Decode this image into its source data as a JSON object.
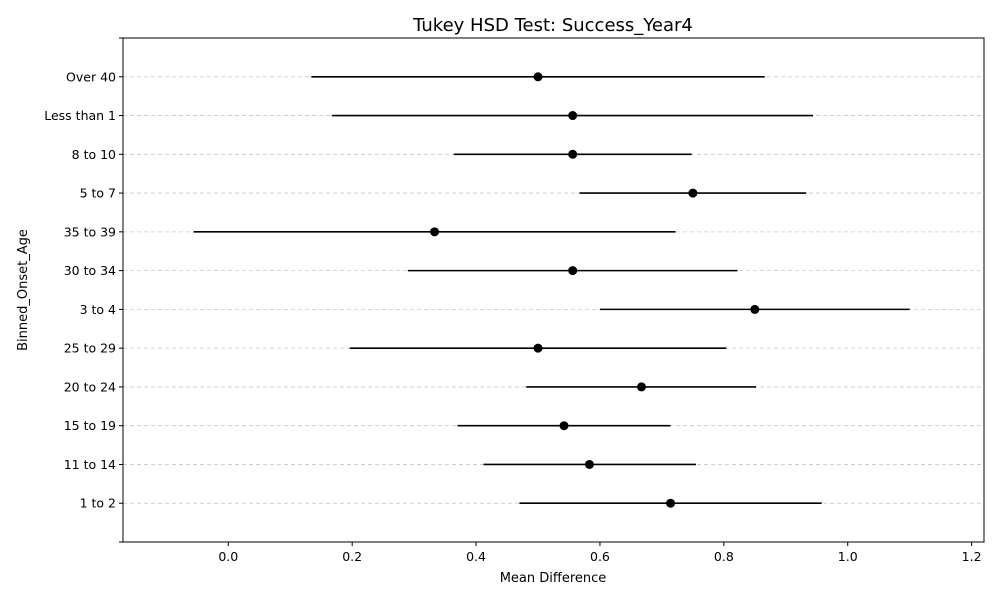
{
  "chart_data": {
    "type": "errorbar",
    "title": "Tukey HSD Test: Success_Year4",
    "xlabel": "Mean Difference",
    "ylabel": "Binned_Onset_Age",
    "xlim": [
      -0.17,
      1.22
    ],
    "xticks": [
      "0.0",
      "0.2",
      "0.4",
      "0.6",
      "0.8",
      "1.0",
      "1.2"
    ],
    "xtick_values": [
      0.0,
      0.2,
      0.4,
      0.6,
      0.8,
      1.0,
      1.2
    ],
    "grid": "y-dashed",
    "colors": {
      "marker": "#000000",
      "errorbar": "#000000",
      "grid": "#c8c8c8"
    },
    "categories": [
      "Over 40",
      "Less than 1",
      "8 to 10",
      "5 to 7",
      "35 to 39",
      "30 to 34",
      "3 to 4",
      "25 to 29",
      "20 to 24",
      "15 to 19",
      "11 to 14",
      "1 to 2"
    ],
    "means": [
      0.5,
      0.556,
      0.556,
      0.75,
      0.333,
      0.556,
      0.85,
      0.5,
      0.667,
      0.542,
      0.583,
      0.714
    ],
    "lower": [
      0.134,
      0.167,
      0.364,
      0.567,
      -0.056,
      0.29,
      0.6,
      0.196,
      0.481,
      0.37,
      0.412,
      0.47
    ],
    "upper": [
      0.866,
      0.944,
      0.748,
      0.933,
      0.722,
      0.822,
      1.1,
      0.804,
      0.852,
      0.714,
      0.755,
      0.958
    ]
  }
}
